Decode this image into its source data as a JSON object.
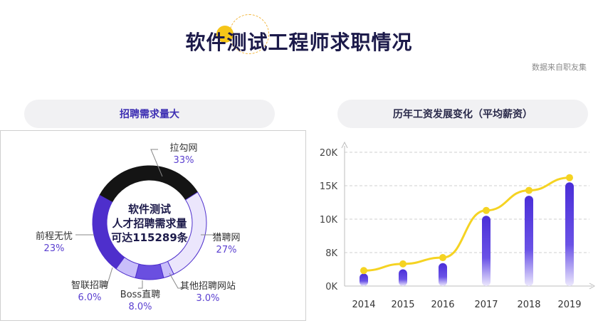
{
  "title": "软件测试工程师求职情况",
  "source_note": "数据来自职友集",
  "left_section": {
    "label": "招聘需求量大"
  },
  "right_section": {
    "label": "历年工资发展变化（平均薪资）"
  },
  "colors": {
    "dark": "#141414",
    "purple": "#4e2fcc",
    "purple_mid": "#6a4fe0",
    "lavender": "#c9befa",
    "pale": "#ebe6fc",
    "yellow": "#f5d322",
    "label_purple": "#5a3fd0"
  },
  "chart_data": [
    {
      "type": "pie",
      "center_text": [
        "软件测试",
        "人才招聘需求量",
        "可达115289条"
      ],
      "slices": [
        {
          "name": "拉勾网",
          "value_label": "33%",
          "value": 33
        },
        {
          "name": "猎聘网",
          "value_label": "27%",
          "value": 27
        },
        {
          "name": "其他招聘网站",
          "value_label": "3.0%",
          "value": 3
        },
        {
          "name": "Boss直聘",
          "value_label": "8.0%",
          "value": 8
        },
        {
          "name": "智联招聘",
          "value_label": "6.0%",
          "value": 6
        },
        {
          "name": "前程无忧",
          "value_label": "23%",
          "value": 23
        }
      ]
    },
    {
      "type": "bar",
      "categories": [
        "2014",
        "2015",
        "2016",
        "2017",
        "2018",
        "2019"
      ],
      "values": [
        3000,
        4000,
        5500,
        10500,
        13500,
        15500
      ],
      "line_values": [
        3700,
        5300,
        6800,
        11300,
        14300,
        16200
      ],
      "yticks": [
        "0K",
        "8K",
        "10K",
        "15K",
        "20K"
      ],
      "ylim": [
        0,
        20000
      ]
    }
  ]
}
